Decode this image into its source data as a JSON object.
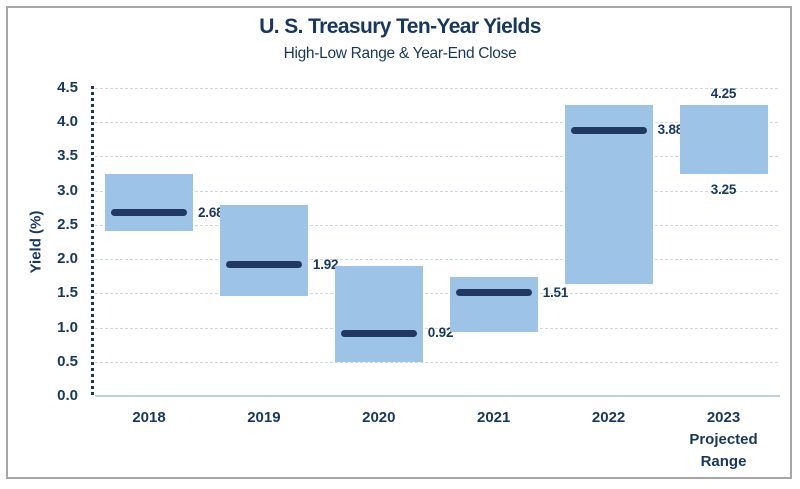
{
  "window": {
    "background": "#FFFFFF",
    "frame_border_color": "#A6A6A6"
  },
  "colors": {
    "text_navy": "#17375E",
    "bar_fill": "#9DC3E6",
    "close_marker": "#1F3864",
    "gridline": "#C9D7EA",
    "zero_line": "#BCD0E8",
    "frame_border": "#A6A6A6",
    "background": "#FFFFFF"
  },
  "chart_data": {
    "type": "bar",
    "variant": "floating-range-columns-with-close-markers",
    "title": "U. S. Treasury Ten-Year Yields",
    "subtitle": "High-Low Range & Year-End Close",
    "xlabel": "",
    "ylabel": "Yield (%)",
    "ylim": [
      0,
      4.5
    ],
    "ytick_step": 0.5,
    "ytick_labels": [
      "0.0",
      "0.5",
      "1.0",
      "1.5",
      "2.0",
      "2.5",
      "3.0",
      "3.5",
      "4.0",
      "4.5"
    ],
    "grid": true,
    "legend": false,
    "categories": [
      "2018",
      "2019",
      "2020",
      "2021",
      "2022",
      "2023 Projected Range"
    ],
    "bars": [
      {
        "year": "2018",
        "x_label_lines": [
          "2018"
        ],
        "high": 3.24,
        "low": 2.41,
        "close": 2.68,
        "close_label": "2.68"
      },
      {
        "year": "2019",
        "x_label_lines": [
          "2019"
        ],
        "high": 2.79,
        "low": 1.46,
        "close": 1.92,
        "close_label": "1.92"
      },
      {
        "year": "2020",
        "x_label_lines": [
          "2020"
        ],
        "high": 1.9,
        "low": 0.5,
        "close": 0.92,
        "close_label": "0.92"
      },
      {
        "year": "2021",
        "x_label_lines": [
          "2021"
        ],
        "high": 1.74,
        "low": 0.93,
        "close": 1.51,
        "close_label": "1.51"
      },
      {
        "year": "2022",
        "x_label_lines": [
          "2022"
        ],
        "high": 4.25,
        "low": 1.63,
        "close": 3.88,
        "close_label": "3.88"
      },
      {
        "year": "2023",
        "x_label_lines": [
          "2023",
          "Projected",
          "Range"
        ],
        "high": 4.25,
        "low": 3.25,
        "close": null,
        "high_label": "4.25",
        "low_label": "3.25"
      }
    ]
  }
}
